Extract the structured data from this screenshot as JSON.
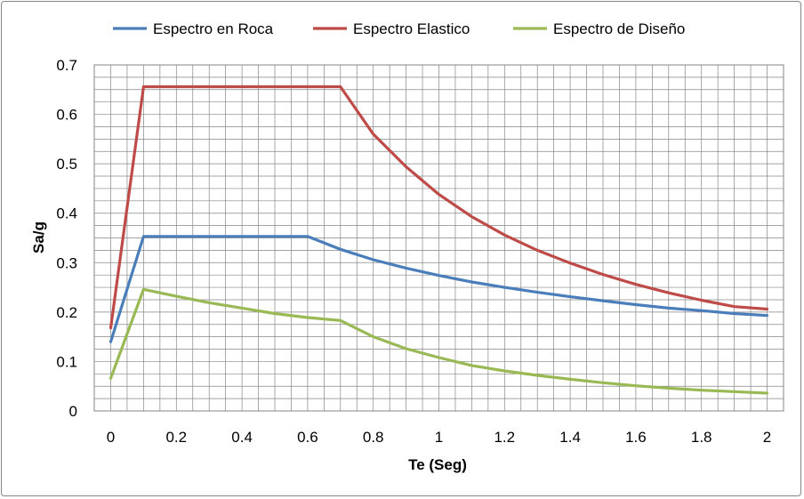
{
  "chart_data": {
    "type": "line",
    "xlabel": "Te (Seg)",
    "ylabel": "Sa/g",
    "xlim": [
      0,
      2
    ],
    "ylim": [
      0,
      0.7
    ],
    "x_ticks": [
      "0",
      "0.2",
      "0.4",
      "0.6",
      "0.8",
      "1",
      "1.2",
      "1.4",
      "1.6",
      "1.8",
      "2"
    ],
    "y_ticks": [
      "0",
      "0.1",
      "0.2",
      "0.3",
      "0.4",
      "0.5",
      "0.6",
      "0.7"
    ],
    "x_tick_values": [
      0,
      0.2,
      0.4,
      0.6,
      0.8,
      1,
      1.2,
      1.4,
      1.6,
      1.8,
      2
    ],
    "y_tick_values": [
      0,
      0.1,
      0.2,
      0.3,
      0.4,
      0.5,
      0.6,
      0.7
    ],
    "minor_x_step": 0.05,
    "minor_y_step": 0.025,
    "grid": true,
    "legend_position": "top",
    "x": [
      0,
      0.1,
      0.2,
      0.3,
      0.4,
      0.5,
      0.6,
      0.7,
      0.8,
      0.9,
      1.0,
      1.1,
      1.2,
      1.3,
      1.4,
      1.5,
      1.6,
      1.7,
      1.8,
      1.9,
      2.0
    ],
    "series": [
      {
        "name": "Espectro en Roca",
        "color": "#4a7ebb",
        "values": [
          0.14,
          0.353,
          0.353,
          0.353,
          0.353,
          0.353,
          0.353,
          0.327,
          0.306,
          0.289,
          0.274,
          0.261,
          0.25,
          0.24,
          0.231,
          0.223,
          0.215,
          0.208,
          0.203,
          0.197,
          0.193
        ]
      },
      {
        "name": "Espectro Elastico",
        "color": "#be4b48",
        "values": [
          0.168,
          0.656,
          0.656,
          0.656,
          0.656,
          0.656,
          0.656,
          0.656,
          0.56,
          0.494,
          0.438,
          0.393,
          0.356,
          0.325,
          0.299,
          0.276,
          0.256,
          0.239,
          0.224,
          0.211,
          0.206
        ]
      },
      {
        "name": "Espectro de Diseño",
        "color": "#98b954",
        "values": [
          0.066,
          0.246,
          0.232,
          0.219,
          0.208,
          0.197,
          0.189,
          0.183,
          0.15,
          0.126,
          0.108,
          0.092,
          0.081,
          0.072,
          0.064,
          0.057,
          0.051,
          0.046,
          0.042,
          0.039,
          0.036
        ]
      }
    ]
  }
}
